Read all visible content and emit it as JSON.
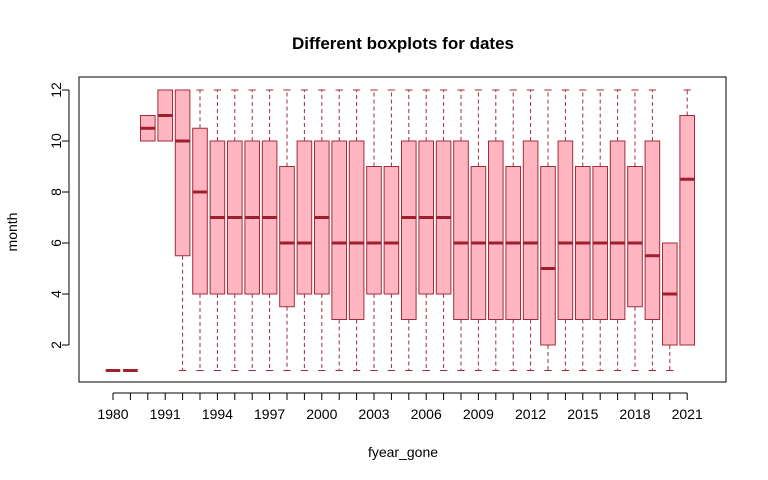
{
  "colors": {
    "box_fill": "#ffb6c1",
    "box_border": "#a52a3a",
    "median": "#a01f2d",
    "frame": "#000000"
  },
  "chart_data": {
    "type": "boxplot",
    "title": "Different boxplots for dates",
    "xlabel": "fyear_gone",
    "ylabel": "month",
    "ylim": [
      0.6,
      12.6
    ],
    "yticks": [
      2,
      4,
      6,
      8,
      10,
      12
    ],
    "xtick_labels": [
      "1980",
      "1991",
      "1994",
      "1997",
      "2000",
      "2003",
      "2006",
      "2009",
      "2012",
      "2015",
      "2018",
      "2021"
    ],
    "grid": false,
    "legend": "none",
    "boxes": [
      {
        "min": 1,
        "q1": 1,
        "median": 1,
        "q3": 1,
        "max": 1
      },
      {
        "min": 1,
        "q1": 1,
        "median": 1,
        "q3": 1,
        "max": 1
      },
      {
        "min": 10,
        "q1": 10,
        "median": 10.5,
        "q3": 11,
        "max": 11
      },
      {
        "min": 10,
        "q1": 10,
        "median": 11,
        "q3": 12,
        "max": 12
      },
      {
        "min": 1,
        "q1": 5.5,
        "median": 10,
        "q3": 12,
        "max": 12
      },
      {
        "min": 1,
        "q1": 4,
        "median": 8,
        "q3": 10.5,
        "max": 12
      },
      {
        "min": 1,
        "q1": 4,
        "median": 7,
        "q3": 10,
        "max": 12
      },
      {
        "min": 1,
        "q1": 4,
        "median": 7,
        "q3": 10,
        "max": 12
      },
      {
        "min": 1,
        "q1": 4,
        "median": 7,
        "q3": 10,
        "max": 12
      },
      {
        "min": 1,
        "q1": 4,
        "median": 7,
        "q3": 10,
        "max": 12
      },
      {
        "min": 1,
        "q1": 3.5,
        "median": 6,
        "q3": 9,
        "max": 12
      },
      {
        "min": 1,
        "q1": 4,
        "median": 6,
        "q3": 10,
        "max": 12
      },
      {
        "min": 1,
        "q1": 4,
        "median": 7,
        "q3": 10,
        "max": 12
      },
      {
        "min": 1,
        "q1": 3,
        "median": 6,
        "q3": 10,
        "max": 12
      },
      {
        "min": 1,
        "q1": 3,
        "median": 6,
        "q3": 10,
        "max": 12
      },
      {
        "min": 1,
        "q1": 4,
        "median": 6,
        "q3": 9,
        "max": 12
      },
      {
        "min": 1,
        "q1": 4,
        "median": 6,
        "q3": 9,
        "max": 12
      },
      {
        "min": 1,
        "q1": 3,
        "median": 7,
        "q3": 10,
        "max": 12
      },
      {
        "min": 1,
        "q1": 4,
        "median": 7,
        "q3": 10,
        "max": 12
      },
      {
        "min": 1,
        "q1": 4,
        "median": 7,
        "q3": 10,
        "max": 12
      },
      {
        "min": 1,
        "q1": 3,
        "median": 6,
        "q3": 10,
        "max": 12
      },
      {
        "min": 1,
        "q1": 3,
        "median": 6,
        "q3": 9,
        "max": 12
      },
      {
        "min": 1,
        "q1": 3,
        "median": 6,
        "q3": 10,
        "max": 12
      },
      {
        "min": 1,
        "q1": 3,
        "median": 6,
        "q3": 9,
        "max": 12
      },
      {
        "min": 1,
        "q1": 3,
        "median": 6,
        "q3": 10,
        "max": 12
      },
      {
        "min": 1,
        "q1": 2,
        "median": 5,
        "q3": 9,
        "max": 12
      },
      {
        "min": 1,
        "q1": 3,
        "median": 6,
        "q3": 10,
        "max": 12
      },
      {
        "min": 1,
        "q1": 3,
        "median": 6,
        "q3": 9,
        "max": 12
      },
      {
        "min": 1,
        "q1": 3,
        "median": 6,
        "q3": 9,
        "max": 12
      },
      {
        "min": 1,
        "q1": 3,
        "median": 6,
        "q3": 10,
        "max": 12
      },
      {
        "min": 1,
        "q1": 3.5,
        "median": 6,
        "q3": 9,
        "max": 12
      },
      {
        "min": 1,
        "q1": 3,
        "median": 5.5,
        "q3": 10,
        "max": 12
      },
      {
        "min": 1,
        "q1": 2,
        "median": 4,
        "q3": 6,
        "max": 6
      },
      {
        "min": 2,
        "q1": 2,
        "median": 8.5,
        "q3": 11,
        "max": 12
      }
    ]
  }
}
